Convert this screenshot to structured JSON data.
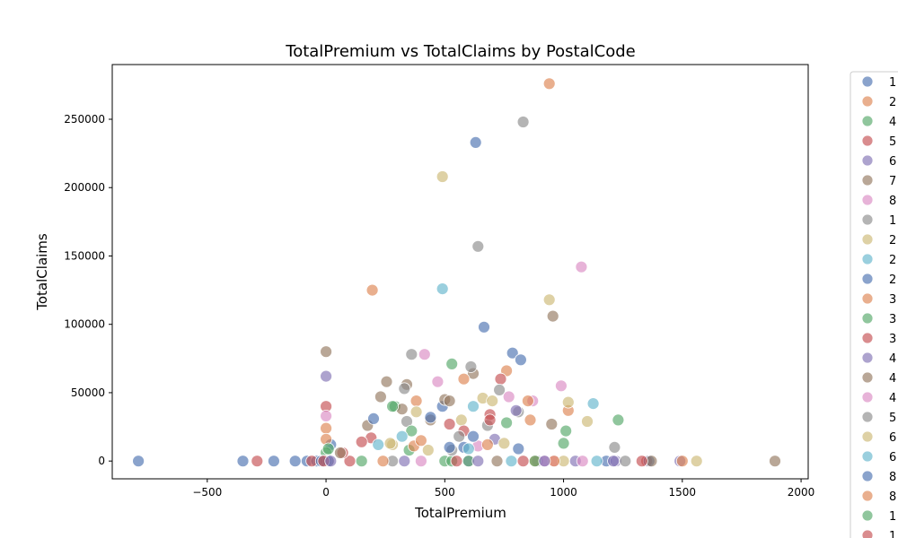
{
  "chart_data": {
    "type": "scatter",
    "title": "TotalPremium vs TotalClaims by PostalCode",
    "xlabel": "TotalPremium",
    "ylabel": "TotalClaims",
    "xlim": [
      -900,
      2030
    ],
    "ylim": [
      -13000,
      290000
    ],
    "xticks": [
      -500,
      0,
      500,
      1000,
      1500,
      2000
    ],
    "yticks": [
      0,
      50000,
      100000,
      150000,
      200000,
      250000
    ],
    "grid": false,
    "legend_position": "right-outside",
    "series": [
      {
        "name": "1",
        "color": "#4c72b0",
        "points": [
          [
            -790,
            0
          ],
          [
            -350,
            0
          ],
          [
            -220,
            0
          ],
          [
            -130,
            0
          ],
          [
            -80,
            0
          ],
          [
            -40,
            0
          ],
          [
            20,
            12000
          ],
          [
            580,
            10000
          ],
          [
            810,
            9000
          ],
          [
            490,
            40000
          ]
        ]
      },
      {
        "name": "2",
        "color": "#dd8452",
        "points": [
          [
            940,
            276000
          ],
          [
            195,
            125000
          ],
          [
            0,
            24000
          ],
          [
            0,
            16000
          ],
          [
            760,
            66000
          ],
          [
            1020,
            37000
          ],
          [
            860,
            30000
          ],
          [
            380,
            44000
          ],
          [
            10,
            0
          ]
        ]
      },
      {
        "name": "4",
        "color": "#55a868",
        "points": [
          [
            530,
            71000
          ],
          [
            290,
            40000
          ],
          [
            1230,
            30000
          ],
          [
            0,
            6000
          ],
          [
            1010,
            22000
          ],
          [
            350,
            8000
          ],
          [
            500,
            0
          ]
        ]
      },
      {
        "name": "5",
        "color": "#c44e52",
        "points": [
          [
            0,
            40000
          ],
          [
            -290,
            0
          ],
          [
            690,
            34000
          ],
          [
            735,
            60000
          ],
          [
            190,
            17000
          ],
          [
            100,
            0
          ],
          [
            1350,
            0
          ],
          [
            150,
            14000
          ]
        ]
      },
      {
        "name": "6",
        "color": "#8172b3",
        "points": [
          [
            0,
            62000
          ],
          [
            1490,
            0
          ],
          [
            890,
            0
          ],
          [
            710,
            16000
          ],
          [
            600,
            0
          ]
        ]
      },
      {
        "name": "7",
        "color": "#937860",
        "points": [
          [
            0,
            80000
          ],
          [
            955,
            106000
          ],
          [
            255,
            58000
          ],
          [
            340,
            56000
          ],
          [
            175,
            26000
          ],
          [
            500,
            45000
          ],
          [
            1890,
            0
          ],
          [
            620,
            64000
          ],
          [
            950,
            27000
          ],
          [
            440,
            30000
          ]
        ]
      },
      {
        "name": "8",
        "color": "#da8bc3",
        "points": [
          [
            1075,
            142000
          ],
          [
            415,
            78000
          ],
          [
            0,
            33000
          ],
          [
            470,
            58000
          ],
          [
            990,
            55000
          ],
          [
            870,
            44000
          ],
          [
            770,
            47000
          ],
          [
            960,
            0
          ]
        ]
      },
      {
        "name": "1",
        "color": "#8c8c8c",
        "points": [
          [
            830,
            248000
          ],
          [
            640,
            157000
          ],
          [
            360,
            78000
          ],
          [
            610,
            69000
          ],
          [
            730,
            52000
          ],
          [
            340,
            29000
          ],
          [
            1215,
            10000
          ],
          [
            0,
            0
          ],
          [
            280,
            0
          ],
          [
            810,
            36000
          ]
        ]
      },
      {
        "name": "2",
        "color": "#ccb974",
        "points": [
          [
            490,
            208000
          ],
          [
            940,
            118000
          ],
          [
            660,
            46000
          ],
          [
            1100,
            29000
          ],
          [
            1020,
            43000
          ],
          [
            1560,
            0
          ],
          [
            280,
            12000
          ],
          [
            750,
            13000
          ],
          [
            570,
            30000
          ]
        ]
      },
      {
        "name": "2",
        "color": "#64b5cd",
        "points": [
          [
            490,
            126000
          ],
          [
            1125,
            42000
          ],
          [
            220,
            12000
          ],
          [
            620,
            40000
          ],
          [
            780,
            0
          ]
        ]
      },
      {
        "name": "2",
        "color": "#4c72b0",
        "points": [
          [
            630,
            233000
          ],
          [
            665,
            98000
          ],
          [
            785,
            79000
          ],
          [
            820,
            74000
          ],
          [
            200,
            31000
          ],
          [
            440,
            32000
          ],
          [
            1180,
            0
          ],
          [
            1360,
            0
          ]
        ]
      },
      {
        "name": "3",
        "color": "#dd8452",
        "points": [
          [
            850,
            44000
          ],
          [
            580,
            60000
          ],
          [
            370,
            11000
          ],
          [
            1500,
            0
          ],
          [
            880,
            0
          ]
        ]
      },
      {
        "name": "3",
        "color": "#55a868",
        "points": [
          [
            1000,
            13000
          ],
          [
            360,
            22000
          ],
          [
            530,
            0
          ],
          [
            760,
            28000
          ],
          [
            150,
            0
          ]
        ]
      },
      {
        "name": "3",
        "color": "#c44e52",
        "points": [
          [
            70,
            6000
          ],
          [
            580,
            22000
          ],
          [
            520,
            27000
          ],
          [
            830,
            0
          ],
          [
            -60,
            0
          ]
        ]
      },
      {
        "name": "4",
        "color": "#8172b3",
        "points": [
          [
            800,
            37000
          ],
          [
            330,
            0
          ],
          [
            1050,
            0
          ],
          [
            1220,
            0
          ]
        ]
      },
      {
        "name": "4",
        "color": "#937860",
        "points": [
          [
            1370,
            0
          ],
          [
            230,
            47000
          ],
          [
            320,
            38000
          ],
          [
            520,
            44000
          ],
          [
            720,
            0
          ],
          [
            60,
            6000
          ]
        ]
      },
      {
        "name": "4",
        "color": "#da8bc3",
        "points": [
          [
            400,
            0
          ],
          [
            920,
            0
          ],
          [
            1080,
            0
          ],
          [
            640,
            11000
          ]
        ]
      },
      {
        "name": "5",
        "color": "#8c8c8c",
        "points": [
          [
            1260,
            0
          ],
          [
            560,
            18000
          ],
          [
            680,
            26000
          ],
          [
            330,
            53000
          ],
          [
            530,
            8000
          ]
        ]
      },
      {
        "name": "6",
        "color": "#ccb974",
        "points": [
          [
            1000,
            0
          ],
          [
            270,
            13000
          ],
          [
            380,
            36000
          ],
          [
            700,
            44000
          ],
          [
            430,
            8000
          ]
        ]
      },
      {
        "name": "6",
        "color": "#64b5cd",
        "points": [
          [
            600,
            9000
          ],
          [
            1140,
            0
          ],
          [
            320,
            18000
          ]
        ]
      },
      {
        "name": "8",
        "color": "#4c72b0",
        "points": [
          [
            10,
            0
          ],
          [
            -20,
            0
          ],
          [
            620,
            18000
          ],
          [
            520,
            10000
          ]
        ]
      },
      {
        "name": "8",
        "color": "#dd8452",
        "points": [
          [
            240,
            0
          ],
          [
            960,
            0
          ],
          [
            400,
            15000
          ],
          [
            680,
            12000
          ]
        ]
      },
      {
        "name": "1",
        "color": "#55a868",
        "points": [
          [
            280,
            40000
          ],
          [
            10,
            9000
          ],
          [
            880,
            0
          ],
          [
            600,
            0
          ]
        ]
      },
      {
        "name": "1",
        "color": "#c44e52",
        "points": [
          [
            1330,
            0
          ],
          [
            550,
            0
          ],
          [
            690,
            30000
          ],
          [
            -10,
            0
          ]
        ]
      },
      {
        "name": "1",
        "color": "#8172b3",
        "points": [
          [
            1210,
            0
          ],
          [
            920,
            0
          ],
          [
            640,
            0
          ],
          [
            20,
            0
          ]
        ]
      }
    ]
  }
}
